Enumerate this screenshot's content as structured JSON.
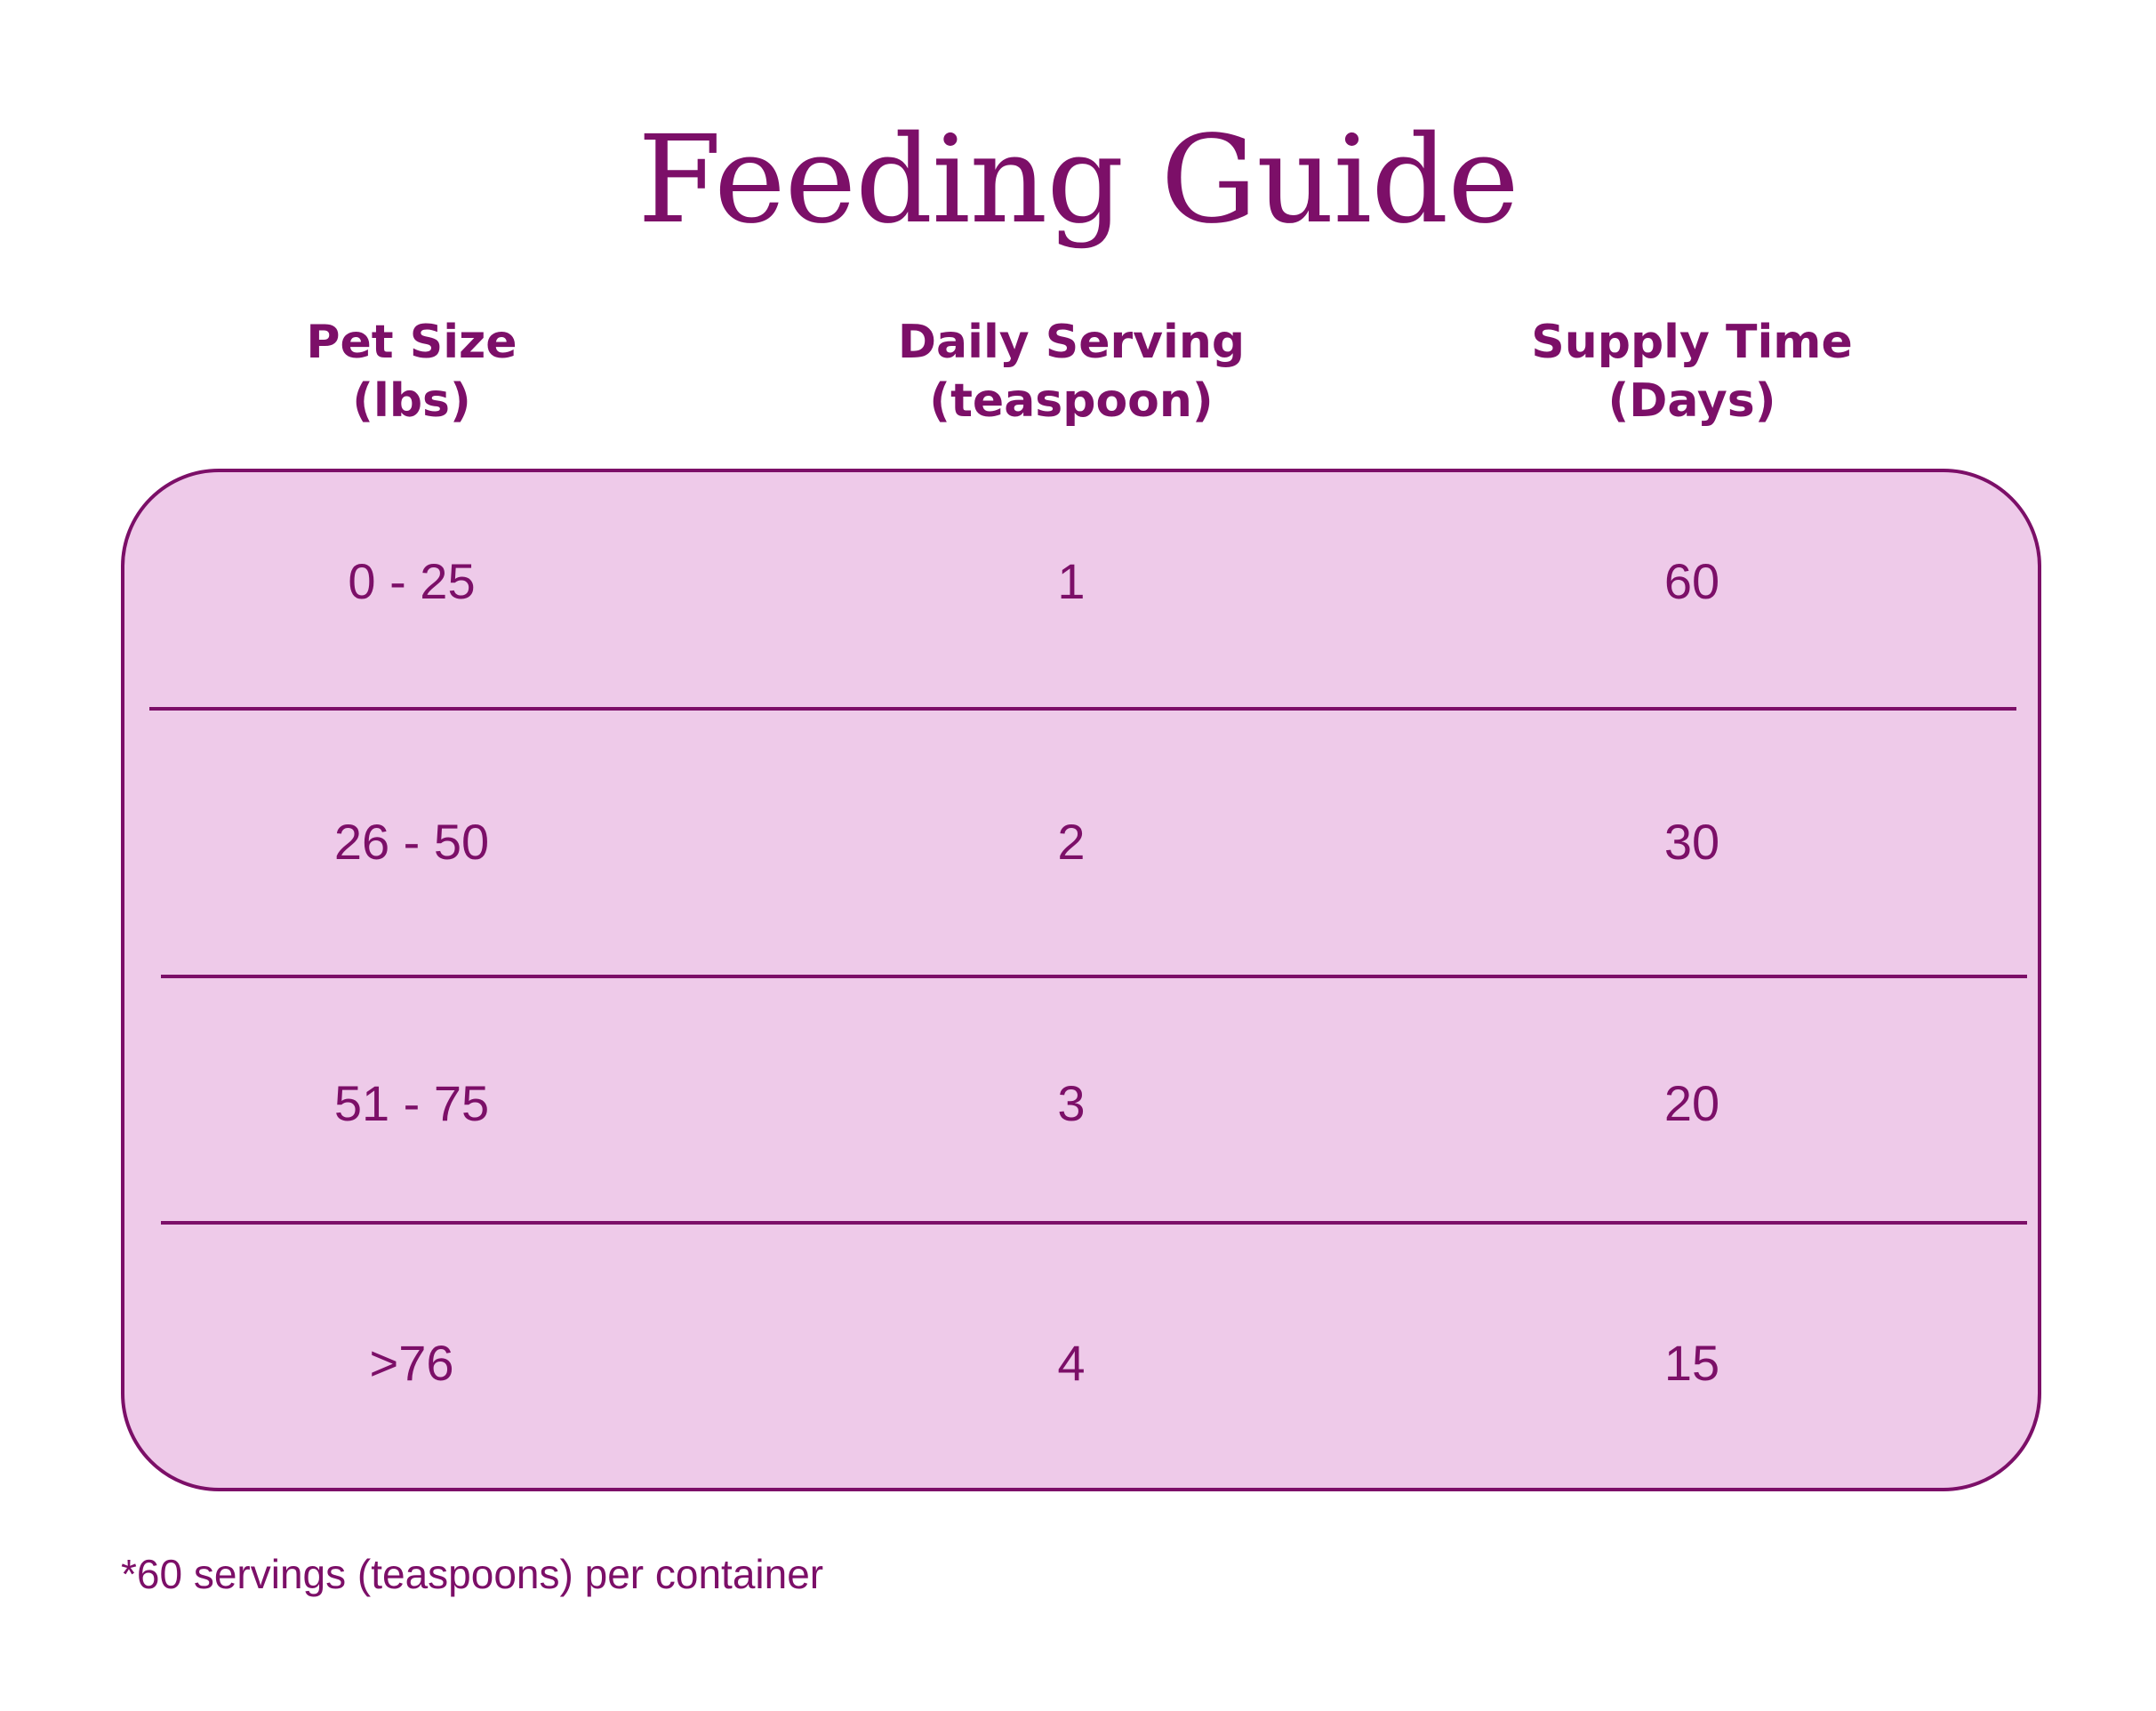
{
  "title": "Feeding Guide",
  "headers": [
    {
      "line1": "Pet Size",
      "line2": "(lbs)"
    },
    {
      "line1": "Daily Serving",
      "line2": "(teaspoon)"
    },
    {
      "line1": "Supply Time",
      "line2": "(Days)"
    }
  ],
  "rows": [
    {
      "pet_size": "0 - 25",
      "daily_serving": "1",
      "supply_time": "60"
    },
    {
      "pet_size": "26 - 50",
      "daily_serving": "2",
      "supply_time": "30"
    },
    {
      "pet_size": "51 - 75",
      "daily_serving": "3",
      "supply_time": "20"
    },
    {
      "pet_size": ">76",
      "daily_serving": "4",
      "supply_time": "15"
    }
  ],
  "footnote": "*60 servings (teaspoons) per container",
  "colors": {
    "accent": "#7c0f68",
    "table_fill": "#eecae9",
    "background": "#ffffff"
  }
}
